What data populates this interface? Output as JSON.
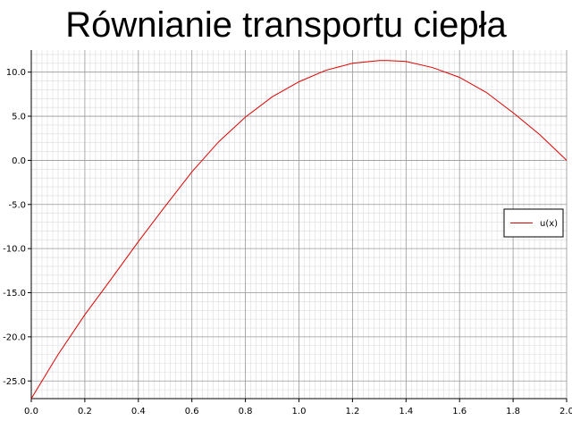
{
  "chart_data": {
    "type": "line",
    "title": "Równianie transportu ciepła",
    "xlabel": "",
    "ylabel": "",
    "xlim": [
      0.0,
      2.0
    ],
    "ylim": [
      -27.0,
      12.5
    ],
    "x_ticks": [
      0.0,
      0.2,
      0.4,
      0.6,
      0.8,
      1.0,
      1.2,
      1.4,
      1.6,
      1.8,
      2.0
    ],
    "x_tick_labels": [
      "0.0",
      "0.2",
      "0.4",
      "0.6",
      "0.8",
      "1.0",
      "1.2",
      "1.4",
      "1.6",
      "1.8",
      "2.0"
    ],
    "y_ticks": [
      10.0,
      5.0,
      0.0,
      -5.0,
      -10.0,
      -15.0,
      -20.0,
      -25.0
    ],
    "y_tick_labels": [
      "10.0",
      "5.0",
      "0.0",
      "-5.0",
      "-10.0",
      "-15.0",
      "-20.0",
      "-25.0"
    ],
    "grid": true,
    "legend_position": "right",
    "series": [
      {
        "name": "u(x)",
        "color": "#e00000",
        "x": [
          0.0,
          0.1,
          0.2,
          0.3,
          0.4,
          0.5,
          0.6,
          0.7,
          0.8,
          0.9,
          1.0,
          1.1,
          1.2,
          1.3,
          1.333,
          1.4,
          1.5,
          1.6,
          1.7,
          1.8,
          1.9,
          2.0
        ],
        "y": [
          -27.0,
          -22.0,
          -17.5,
          -13.4,
          -9.2,
          -5.2,
          -1.3,
          2.1,
          4.9,
          7.2,
          8.9,
          10.2,
          11.0,
          11.3,
          11.3,
          11.2,
          10.5,
          9.4,
          7.7,
          5.4,
          2.9,
          0.0
        ]
      }
    ]
  }
}
